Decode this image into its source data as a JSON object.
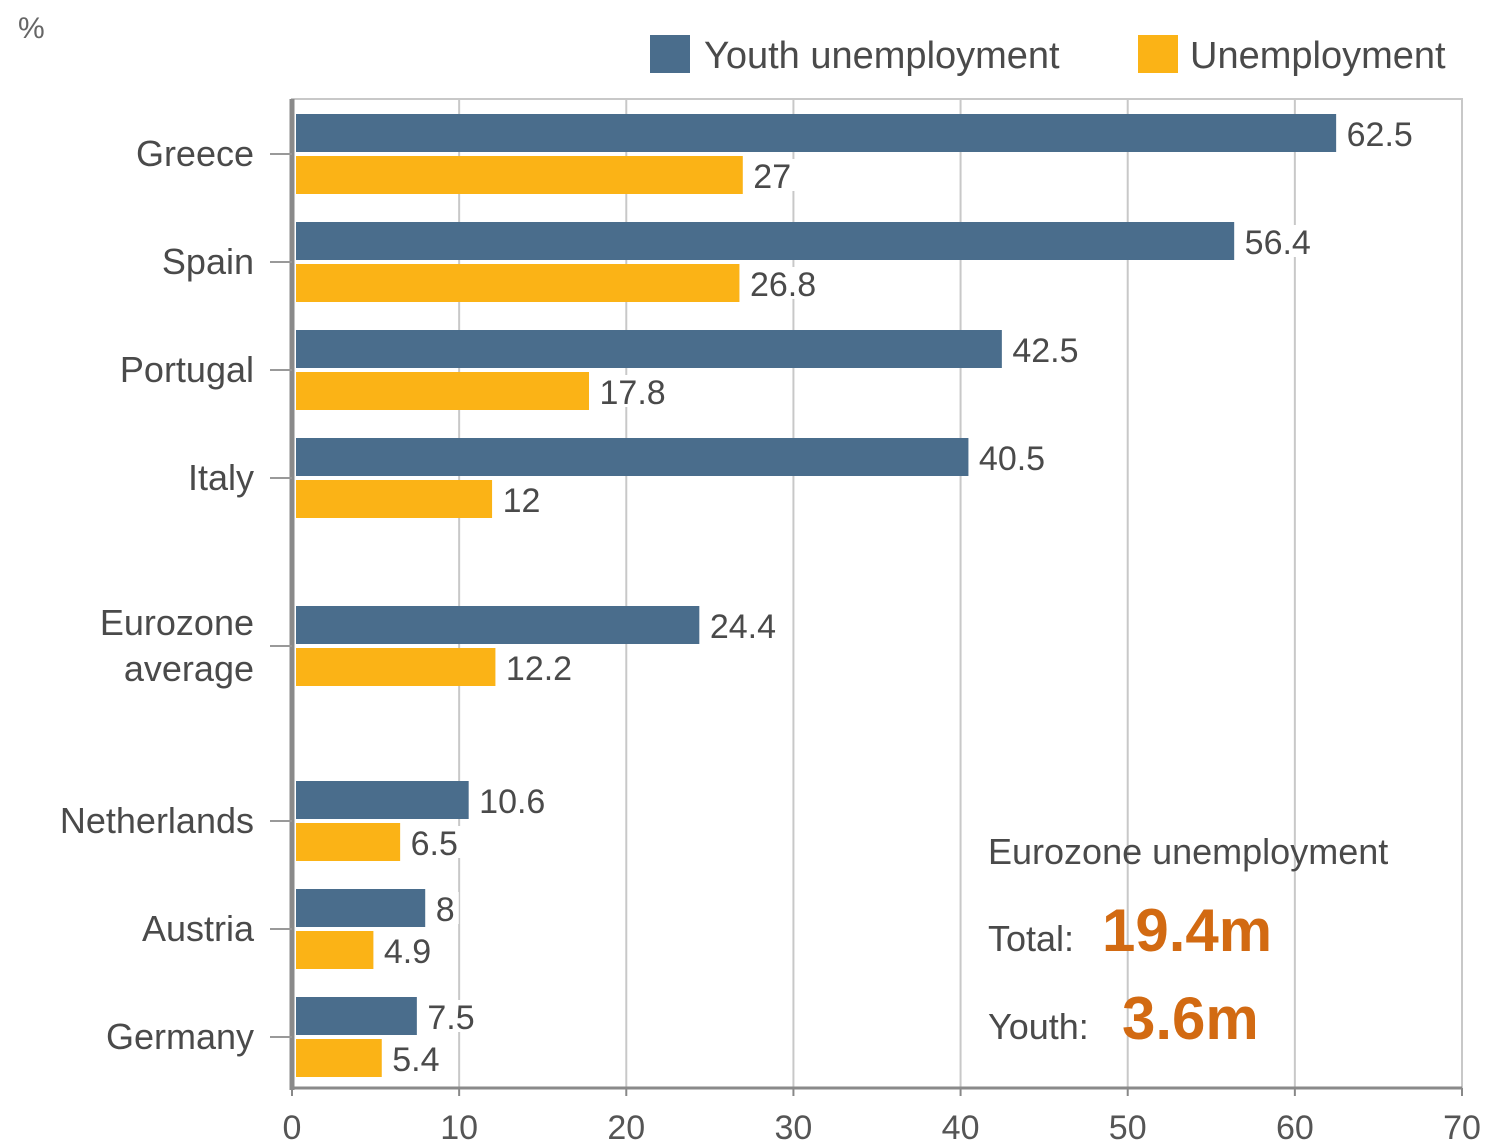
{
  "chart_data": {
    "type": "bar",
    "orientation": "horizontal",
    "unit_label": "%",
    "categories": [
      "Greece",
      "Spain",
      "Portugal",
      "Italy",
      "Eurozone average",
      "Netherlands",
      "Austria",
      "Germany"
    ],
    "category_lines": [
      [
        "Greece"
      ],
      [
        "Spain"
      ],
      [
        "Portugal"
      ],
      [
        "Italy"
      ],
      [
        "Eurozone",
        "average"
      ],
      [
        "Netherlands"
      ],
      [
        "Austria"
      ],
      [
        "Germany"
      ]
    ],
    "series": [
      {
        "name": "Youth unemployment",
        "color": "#4a6d8c",
        "values": [
          62.5,
          56.4,
          42.5,
          40.5,
          24.4,
          10.6,
          8,
          7.5
        ]
      },
      {
        "name": "Unemployment",
        "color": "#fbb316",
        "values": [
          27,
          26.8,
          17.8,
          12,
          12.2,
          6.5,
          4.9,
          5.4
        ]
      }
    ],
    "value_labels": [
      [
        "62.5",
        "56.4",
        "42.5",
        "40.5",
        "24.4",
        "10.6",
        "8",
        "7.5"
      ],
      [
        "27",
        "26.8",
        "17.8",
        "12",
        "12.2",
        "6.5",
        "4.9",
        "5.4"
      ]
    ],
    "xlim": [
      0,
      70
    ],
    "xticks": [
      0,
      10,
      20,
      30,
      40,
      50,
      60,
      70
    ],
    "grid": true,
    "legend_position": "top-right"
  },
  "summary_box": {
    "title": "Eurozone unemployment",
    "total_label": "Total:",
    "total_value": "19.4m",
    "youth_label": "Youth:",
    "youth_value": "3.6m",
    "value_color": "#d26a12"
  }
}
